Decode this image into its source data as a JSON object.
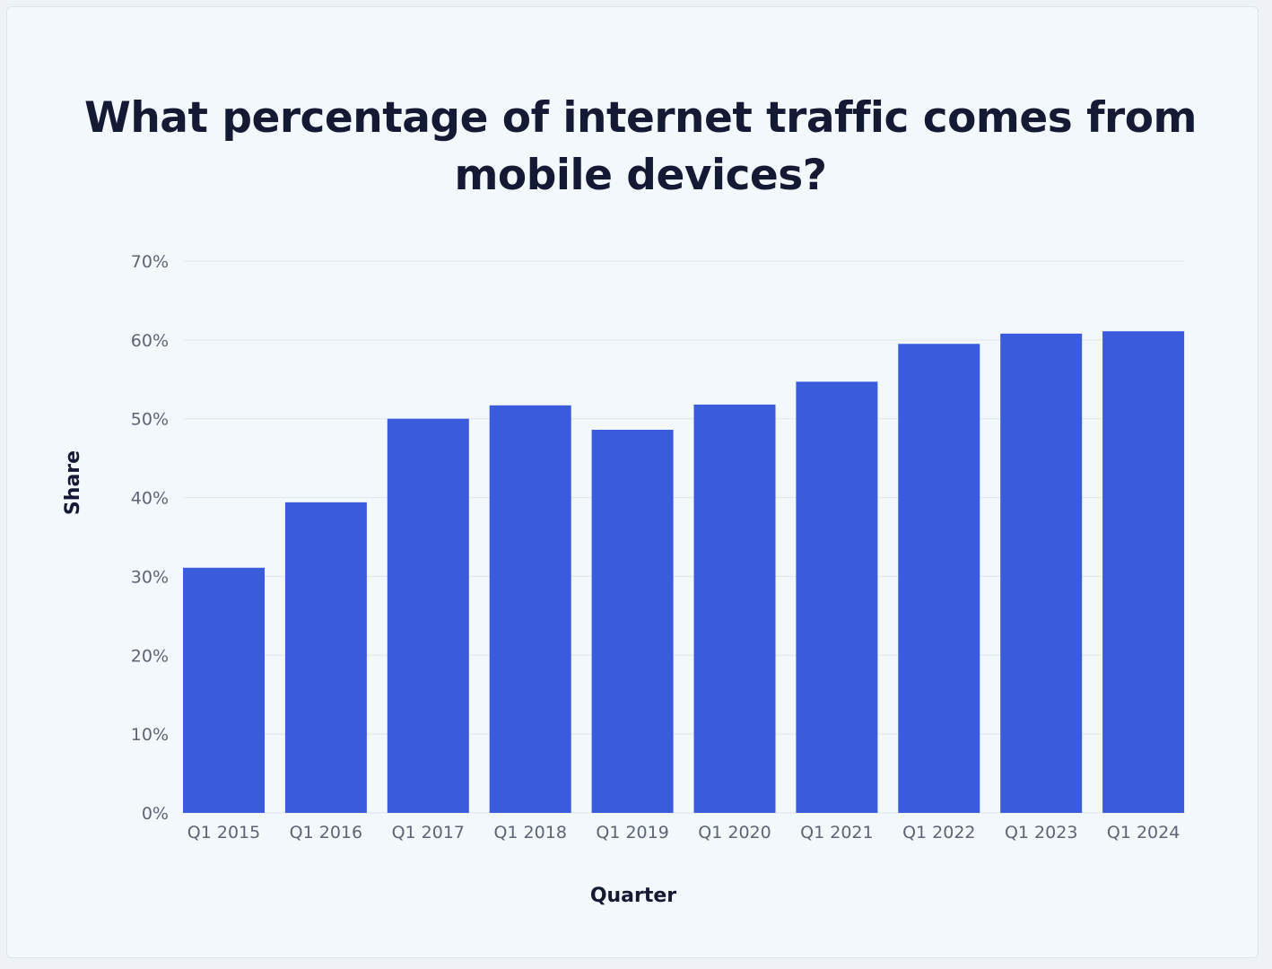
{
  "chart_data": {
    "type": "bar",
    "title": "What percentage of internet traffic comes from mobile devices?",
    "xlabel": "Quarter",
    "ylabel": "Share",
    "categories": [
      "Q1 2015",
      "Q1 2016",
      "Q1 2017",
      "Q1 2018",
      "Q1 2019",
      "Q1 2020",
      "Q1 2021",
      "Q1 2022",
      "Q1 2023",
      "Q1 2024"
    ],
    "values": [
      31.1,
      39.4,
      50.0,
      51.7,
      48.6,
      51.8,
      54.7,
      59.5,
      60.8,
      61.1
    ],
    "ylim": [
      0,
      70
    ],
    "yticks": [
      "0%",
      "10%",
      "20%",
      "30%",
      "40%",
      "50%",
      "60%",
      "70%"
    ],
    "grid": true,
    "legend": "none",
    "bar_color": "#3a5bdb"
  }
}
